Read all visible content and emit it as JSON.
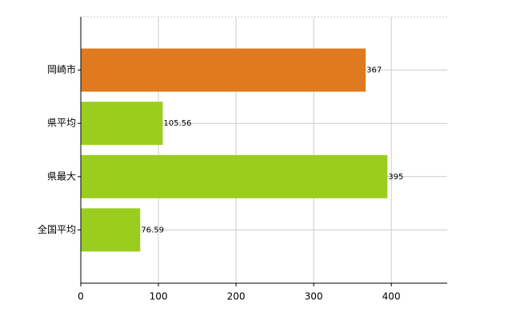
{
  "chart_data": {
    "type": "hbar",
    "categories": [
      "岡崎市",
      "県平均",
      "県最大",
      "全国平均"
    ],
    "values": [
      367,
      105.56,
      395,
      76.59
    ],
    "colors": [
      "#e07a1f",
      "#9acd1e",
      "#9acd1e",
      "#9acd1e"
    ],
    "xlim": [
      0,
      472
    ],
    "xticks": [
      0,
      100,
      200,
      300,
      400
    ],
    "grid": true
  }
}
